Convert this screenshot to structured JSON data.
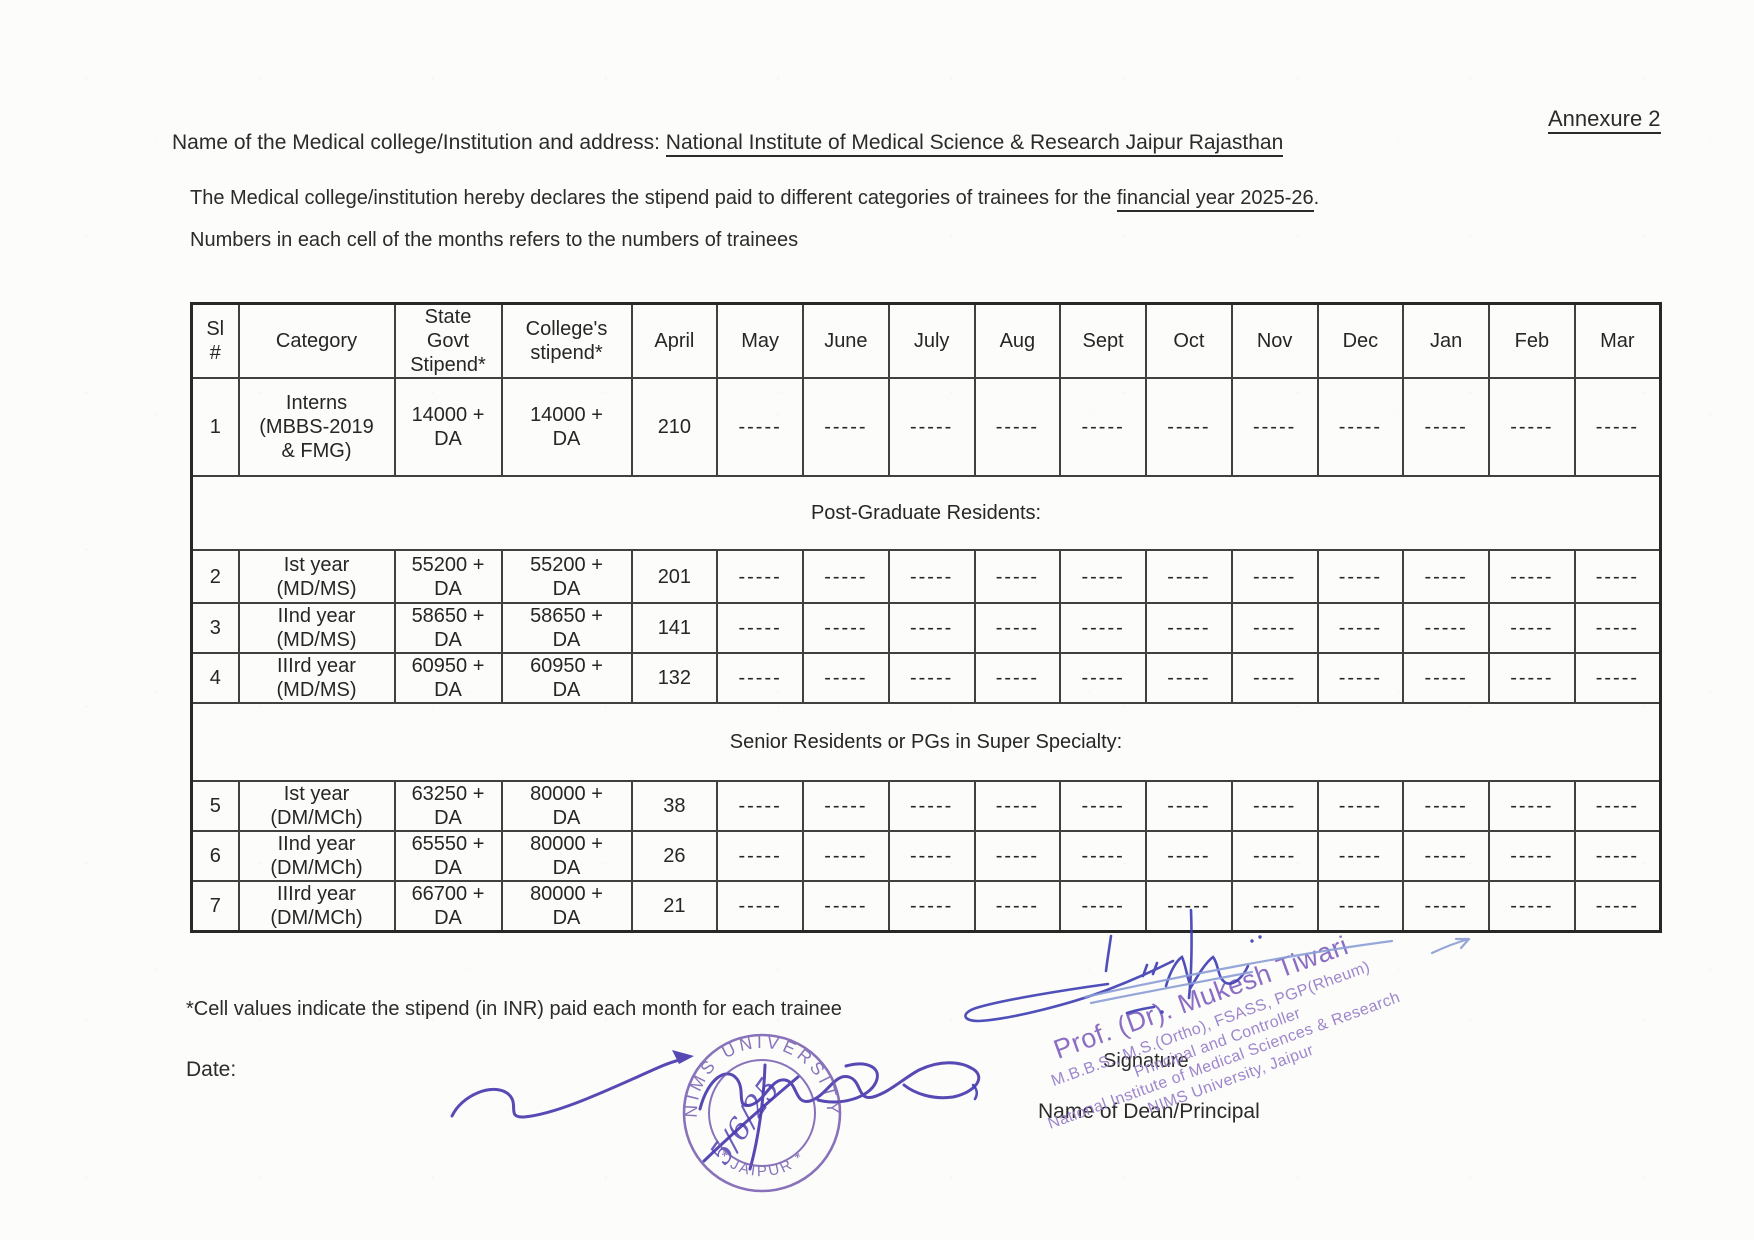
{
  "header": {
    "annexure": "Annexure 2",
    "institution_label": "Name of the Medical college/Institution and address: ",
    "institution_value": "National Institute of Medical Science & Research Jaipur Rajasthan",
    "declaration_prefix": "The Medical college/institution hereby declares the stipend paid to different categories of trainees for the ",
    "declaration_underlined": "financial year 2025-26",
    "declaration_suffix": ".",
    "note": "Numbers in each cell of the months refers to the numbers of trainees"
  },
  "table": {
    "columns": [
      "Sl\n#",
      "Category",
      "State\nGovt\nStipend*",
      "College's\nstipend*",
      "April",
      "May",
      "June",
      "July",
      "Aug",
      "Sept",
      "Oct",
      "Nov",
      "Dec",
      "Jan",
      "Feb",
      "Mar"
    ],
    "groups": [
      {
        "section": null,
        "rows": [
          {
            "sl": "1",
            "category": "Interns\n(MBBS-2019\n& FMG)",
            "state_stipend": "14000 +\nDA",
            "college_stipend": "14000 +\nDA",
            "months": [
              "210",
              "-----",
              "-----",
              "-----",
              "-----",
              "-----",
              "-----",
              "-----",
              "-----",
              "-----",
              "-----",
              "-----"
            ]
          }
        ]
      },
      {
        "section": "Post-Graduate Residents:",
        "rows": [
          {
            "sl": "2",
            "category": "Ist year\n(MD/MS)",
            "state_stipend": "55200 +\nDA",
            "college_stipend": "55200 +\nDA",
            "months": [
              "201",
              "-----",
              "-----",
              "-----",
              "-----",
              "-----",
              "-----",
              "-----",
              "-----",
              "-----",
              "-----",
              "-----"
            ]
          },
          {
            "sl": "3",
            "category": "IInd year\n(MD/MS)",
            "state_stipend": "58650 +\nDA",
            "college_stipend": "58650 +\nDA",
            "months": [
              "141",
              "-----",
              "-----",
              "-----",
              "-----",
              "-----",
              "-----",
              "-----",
              "-----",
              "-----",
              "-----",
              "-----"
            ]
          },
          {
            "sl": "4",
            "category": "IIIrd year\n(MD/MS)",
            "state_stipend": "60950 +\nDA",
            "college_stipend": "60950 +\nDA",
            "months": [
              "132",
              "-----",
              "-----",
              "-----",
              "-----",
              "-----",
              "-----",
              "-----",
              "-----",
              "-----",
              "-----",
              "-----"
            ]
          }
        ]
      },
      {
        "section": "Senior Residents or PGs in Super Specialty:",
        "rows": [
          {
            "sl": "5",
            "category": "Ist year\n(DM/MCh)",
            "state_stipend": "63250 +\nDA",
            "college_stipend": "80000 +\nDA",
            "months": [
              "38",
              "-----",
              "-----",
              "-----",
              "-----",
              "-----",
              "-----",
              "-----",
              "-----",
              "-----",
              "-----",
              "-----"
            ]
          },
          {
            "sl": "6",
            "category": "IInd year\n(DM/MCh)",
            "state_stipend": "65550 +\nDA",
            "college_stipend": "80000 +\nDA",
            "months": [
              "26",
              "-----",
              "-----",
              "-----",
              "-----",
              "-----",
              "-----",
              "-----",
              "-----",
              "-----",
              "-----",
              "-----"
            ]
          },
          {
            "sl": "7",
            "category": "IIIrd year\n(DM/MCh)",
            "state_stipend": "66700 +\nDA",
            "college_stipend": "80000 +\nDA",
            "months": [
              "21",
              "-----",
              "-----",
              "-----",
              "-----",
              "-----",
              "-----",
              "-----",
              "-----",
              "-----",
              "-----",
              "-----"
            ]
          }
        ]
      }
    ]
  },
  "footer": {
    "footnote": "*Cell values indicate the stipend (in INR) paid each month for each trainee",
    "date_label": "Date:",
    "signature_label": "Signature",
    "dean_label": "Name of Dean/Principal"
  },
  "stamps": {
    "round": {
      "top_text": "NIMS UNIVERSITY",
      "bottom_text": "* JAIPUR *",
      "handwritten_date": "5/6/25",
      "color": "#6f55ae"
    },
    "diagonal": {
      "color": "#8a6cc4",
      "lines": [
        "Prof. (Dr). Mukesh Tiwari",
        "M.B.B.S., M.S.(Ortho), FSASS, PGP(Rheum)",
        "Principal and Controller",
        "National Institute of Medical Sciences & Research",
        "NIMS University, Jaipur"
      ]
    }
  },
  "colors": {
    "text": "#2b2b2b",
    "table_border": "#404040",
    "stamp_purple": "#6f55ae",
    "stamp_text_purple": "#8a6cc4",
    "signature_blue": "#3d3db4",
    "signature_violet": "#4636ac",
    "light_blue_line": "#8b9dd6"
  }
}
